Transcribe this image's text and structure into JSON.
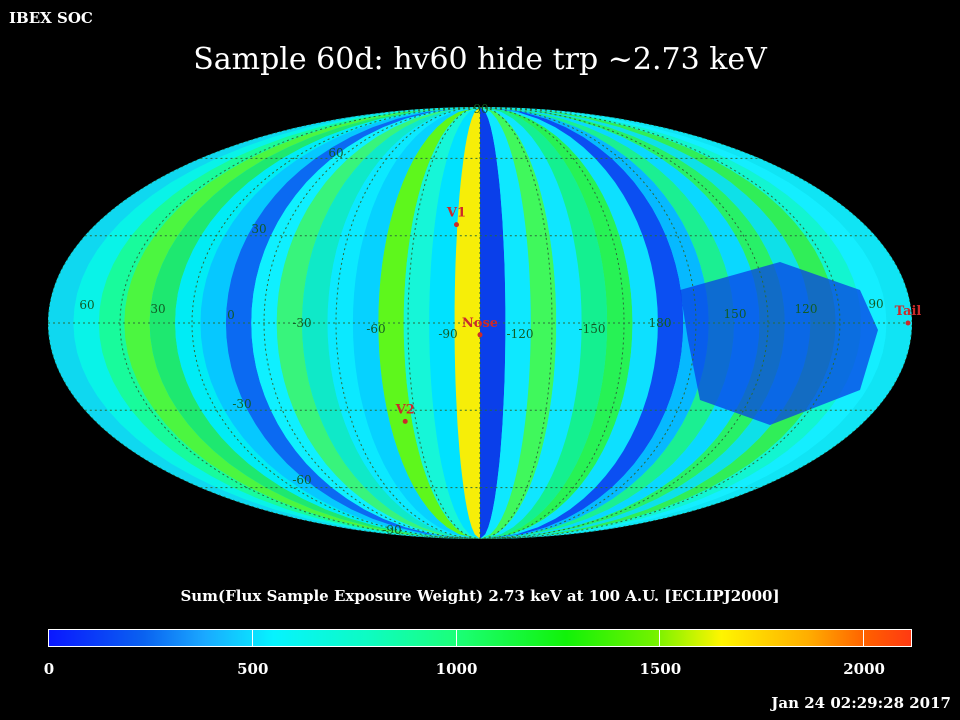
{
  "header": {
    "org": "IBEX SOC",
    "title": "Sample 60d: hv60 hide trp ~2.73 keV"
  },
  "map": {
    "projection": "mollweide",
    "grid_lines": true,
    "latitude_labels": [
      "90",
      "60",
      "30",
      "0",
      "-30",
      "-60",
      "-90"
    ],
    "longitude_labels": [
      "60",
      "30",
      "0",
      "-30",
      "-60",
      "-90",
      "-120",
      "-150",
      "180",
      "150",
      "120",
      "90"
    ],
    "markers": [
      {
        "name": "V1",
        "lon": -94,
        "lat": 34
      },
      {
        "name": "Nose",
        "lon": -105,
        "lat": -4
      },
      {
        "name": "V2",
        "lon": -70,
        "lat": -34
      },
      {
        "name": "Tail",
        "lon": 75,
        "lat": 0
      }
    ],
    "marker_color": "#cc2a2a"
  },
  "colorbar": {
    "title": "Sum(Flux Sample Exposure Weight)  2.73 keV at 100 A.U. [ECLIPJ2000]",
    "min": 0,
    "max": 2120,
    "tick_labels": [
      "0",
      "500",
      "1000",
      "1500",
      "2000"
    ],
    "tick_values": [
      0,
      500,
      1000,
      1500,
      2000
    ]
  },
  "footer": {
    "timestamp": "Jan 24 02:29:28 2017"
  }
}
